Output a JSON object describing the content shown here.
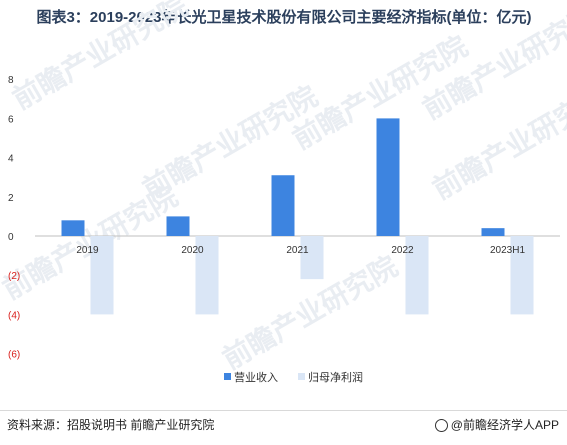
{
  "title": "图表3：2019-2023年长光卫星技术股份有限公司主要经济指标(单位：亿元)",
  "source": "资料来源：招股说明书 前瞻产业研究院",
  "brand": "@前瞻经济学人APP",
  "watermark": "前瞻产业研究院",
  "chart_data": {
    "type": "bar",
    "title": "图表3：2019-2023年长光卫星技术股份有限公司主要经济指标(单位：亿元)",
    "categories": [
      "2019",
      "2020",
      "2021",
      "2022",
      "2023H1"
    ],
    "series": [
      {
        "name": "营业收入",
        "color": "#3d84e0",
        "values": [
          0.8,
          1.0,
          3.1,
          6.0,
          0.4
        ]
      },
      {
        "name": "归母净利润",
        "color": "#dae6f6",
        "values": [
          -4.0,
          -4.0,
          -2.2,
          -4.0,
          -4.0
        ]
      }
    ],
    "yticks": [
      8,
      6,
      4,
      2,
      0,
      -2,
      -4,
      -6
    ],
    "ytick_labels": [
      "8",
      "6",
      "4",
      "2",
      "0",
      "(2)",
      "(4)",
      "(6)"
    ],
    "ylim": [
      -6,
      8
    ],
    "legend": "bottom-right",
    "grid": false
  }
}
